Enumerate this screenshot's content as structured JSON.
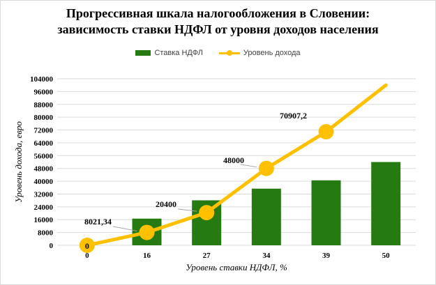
{
  "colors": {
    "bar": "#267a12",
    "line": "#ffc000",
    "grid": "#d9d9d9",
    "leader": "#a6a6a6"
  },
  "chart_data": {
    "type": "bar",
    "title_line1": "Прогрессивная шкала налогообложения  в Словении:",
    "title_line2": "зависимость ставки НДФЛ от уровня доходов населения",
    "xlabel": "Уровень ставки НДФЛ, %",
    "ylabel": "Уровень дохода, евро",
    "categories": [
      "0",
      "16",
      "27",
      "34",
      "39",
      "50"
    ],
    "y_ticks": [
      "0",
      "8000",
      "16000",
      "24000",
      "32000",
      "40000",
      "48000",
      "56000",
      "64000",
      "72000",
      "80000",
      "88000",
      "96000",
      "104000"
    ],
    "ylim": [
      0,
      104000
    ],
    "grid": true,
    "legend_position": "top",
    "series": [
      {
        "name": "Ставка НДФЛ",
        "type": "bar",
        "values": [
          0,
          16,
          27,
          34,
          39,
          50
        ]
      },
      {
        "name": "Уровень дохода",
        "type": "line",
        "values": [
          0,
          8021.34,
          20400,
          48000,
          70907.2,
          100000
        ]
      }
    ],
    "data_labels": [
      "0",
      "8021,34",
      "20400",
      "48000",
      "70907,2"
    ]
  }
}
